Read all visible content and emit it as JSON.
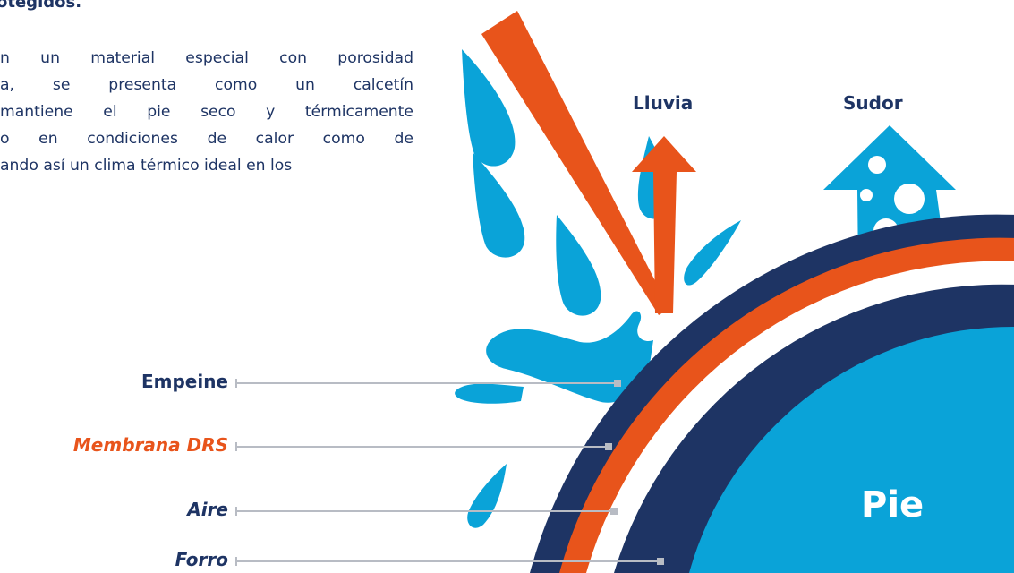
{
  "heading": "otegidos.",
  "paragraph_lines": [
    "n un material especial con porosidad",
    "a, se presenta como un calcetín",
    "mantiene el pie seco y térmicamente",
    "o en condiciones de calor como de",
    "ando así un clima térmico ideal en los"
  ],
  "captions": {
    "rain": "Lluvia",
    "sweat": "Sudor",
    "foot": "Pie"
  },
  "layers": [
    {
      "label": "Empeine",
      "style": "bold",
      "color": "#1e3464"
    },
    {
      "label": "Membrana DRS",
      "style": "bold-italic",
      "color": "#e8541b"
    },
    {
      "label": "Aire",
      "style": "bold-italic",
      "color": "#1e3464"
    },
    {
      "label": "Forro",
      "style": "bold-italic",
      "color": "#1e3464"
    }
  ],
  "colors": {
    "navy": "#1e3464",
    "orange": "#e8541b",
    "blue": "#0aa3d8",
    "leader": "#b8bcc4"
  }
}
